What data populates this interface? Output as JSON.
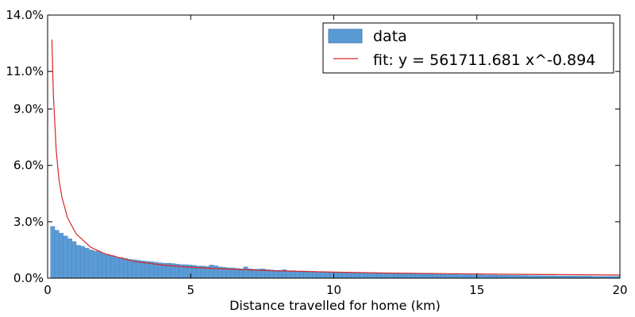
{
  "chart_data": {
    "type": "bar",
    "title": "",
    "xlabel": "Distance travelled for home (km)",
    "ylabel": "",
    "xlim": [
      0,
      20
    ],
    "ylim": [
      0,
      14
    ],
    "grid": false,
    "legend_position": "top-right",
    "x_ticks": [
      0,
      5,
      10,
      15,
      20
    ],
    "x_tick_labels": [
      "0",
      "5",
      "10",
      "15",
      "20"
    ],
    "y_ticks": [
      0,
      3,
      6,
      9,
      11,
      14
    ],
    "y_tick_labels": [
      "0.0%",
      "3.0%",
      "6.0%",
      "9.0%",
      "11.0%",
      "14.0%"
    ],
    "bin_width": 0.15,
    "colors": {
      "bars": "#5b9bd5",
      "bar_edge": "#3f7fb8",
      "fit": "#d62728",
      "axes": "#000000"
    },
    "series": [
      {
        "name": "data",
        "kind": "histogram",
        "x_start": 0.1,
        "values": [
          2.75,
          2.55,
          2.4,
          2.25,
          2.1,
          1.95,
          1.75,
          1.7,
          1.6,
          1.5,
          1.45,
          1.4,
          1.3,
          1.25,
          1.2,
          1.1,
          1.1,
          1.05,
          1.0,
          0.98,
          0.95,
          0.92,
          0.9,
          0.88,
          0.85,
          0.82,
          0.8,
          0.8,
          0.78,
          0.75,
          0.72,
          0.72,
          0.7,
          0.68,
          0.65,
          0.65,
          0.62,
          0.7,
          0.66,
          0.6,
          0.58,
          0.55,
          0.55,
          0.52,
          0.5,
          0.6,
          0.5,
          0.48,
          0.48,
          0.5,
          0.46,
          0.44,
          0.42,
          0.42,
          0.45,
          0.4,
          0.4,
          0.38,
          0.38,
          0.38,
          0.36,
          0.36,
          0.35,
          0.34,
          0.34,
          0.33,
          0.33,
          0.32,
          0.32,
          0.3,
          0.3,
          0.3,
          0.29,
          0.29,
          0.28,
          0.28,
          0.27,
          0.27,
          0.26,
          0.26,
          0.25,
          0.25,
          0.25,
          0.24,
          0.24,
          0.23,
          0.23,
          0.22,
          0.22,
          0.22,
          0.21,
          0.21,
          0.2,
          0.2,
          0.2,
          0.19,
          0.19,
          0.19,
          0.18,
          0.18,
          0.18,
          0.17,
          0.17,
          0.17,
          0.16,
          0.16,
          0.16,
          0.15,
          0.15,
          0.15,
          0.15,
          0.14,
          0.14,
          0.14,
          0.13,
          0.13,
          0.13,
          0.13,
          0.12,
          0.12,
          0.12,
          0.12,
          0.11,
          0.11,
          0.11,
          0.11,
          0.1,
          0.1,
          0.1,
          0.1,
          0.1,
          0.1,
          0.1
        ]
      },
      {
        "name": "fit: y = 561711.681 x^-0.894",
        "kind": "line",
        "x": [
          0.15,
          0.2,
          0.3,
          0.4,
          0.5,
          0.7,
          1.0,
          1.5,
          2.0,
          3.0,
          4.0,
          5.0,
          6.0,
          8.0,
          10.0,
          12.0,
          14.0,
          16.0,
          18.0,
          20.0
        ],
        "values": [
          12.7,
          9.8,
          6.8,
          5.2,
          4.3,
          3.2,
          2.35,
          1.65,
          1.3,
          0.9,
          0.7,
          0.58,
          0.5,
          0.39,
          0.32,
          0.27,
          0.24,
          0.21,
          0.19,
          0.17
        ]
      }
    ]
  }
}
